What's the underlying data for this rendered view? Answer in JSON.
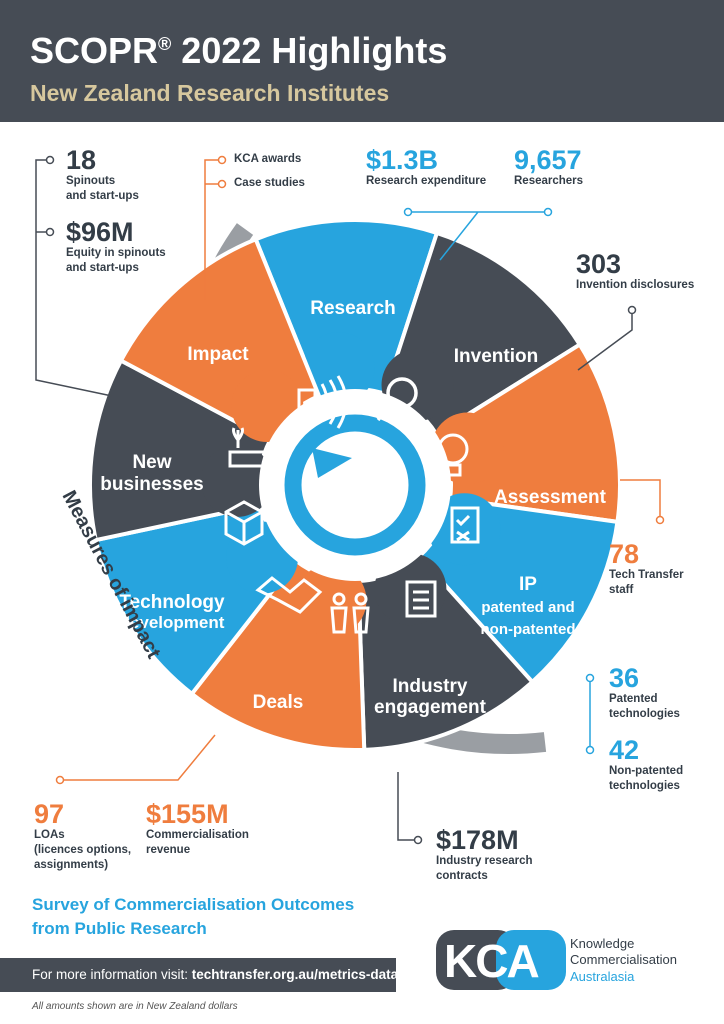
{
  "header": {
    "title": "SCOPR",
    "title_mark": "®",
    "title_rest": " 2022 Highlights",
    "subtitle": "New Zealand Research Institutes"
  },
  "wheel": {
    "segments": [
      {
        "label": "Research",
        "color": "#27a4de",
        "icon": "magnifier-icon"
      },
      {
        "label": "Invention",
        "color": "#464c55",
        "icon": "lightbulb-icon"
      },
      {
        "label": "Assessment",
        "color": "#ef7d3e",
        "icon": "clipboard-icon"
      },
      {
        "label": "IP",
        "sublabel_1": "patented and",
        "sublabel_2": "non-patented",
        "color": "#27a4de",
        "icon": "scroll-icon"
      },
      {
        "label": "Industry",
        "label_2": "engagement",
        "color": "#464c55",
        "icon": "people-icon"
      },
      {
        "label": "Deals",
        "color": "#ef7d3e",
        "icon": "handshake-icon"
      },
      {
        "label": "Technology",
        "label_2": "development",
        "color": "#27a4de",
        "icon": "box-icon"
      },
      {
        "label": "New",
        "label_2": "businesses",
        "color": "#464c55",
        "icon": "factory-icon"
      },
      {
        "label": "Impact",
        "color": "#ef7d3e",
        "icon": "megaphone-icon"
      }
    ],
    "arc_label": "Measures of impact"
  },
  "stats": {
    "spinouts": {
      "value": "18",
      "label_1": "Spinouts",
      "label_2": "and start-ups"
    },
    "equity": {
      "value": "$96M",
      "label_1": "Equity in spinouts",
      "label_2": "and start-ups"
    },
    "kca_awards": "KCA awards",
    "case_studies": "Case studies",
    "research_exp": {
      "value": "$1.3B",
      "label": "Research expenditure"
    },
    "researchers": {
      "value": "9,657",
      "label": "Researchers"
    },
    "invention": {
      "value": "303",
      "label": "Invention disclosures"
    },
    "tt_staff": {
      "value": "78",
      "label_1": "Tech Transfer",
      "label_2": "staff"
    },
    "patented": {
      "value": "36",
      "label_1": "Patented",
      "label_2": "technologies"
    },
    "non_patented": {
      "value": "42",
      "label_1": "Non-patented",
      "label_2": "technologies"
    },
    "loas": {
      "value": "97",
      "label_1": "LOAs",
      "label_2": "(licences options,",
      "label_3": "assignments)"
    },
    "comm_revenue": {
      "value": "$155M",
      "label_1": "Commercialisation",
      "label_2": "revenue"
    },
    "industry_contracts": {
      "value": "$178M",
      "label_1": "Industry research",
      "label_2": "contracts"
    }
  },
  "footer": {
    "survey_1": "Survey of Commercialisation Outcomes",
    "survey_2": "from Public Research",
    "info_prefix": "For more information visit: ",
    "info_link": "techtransfer.org.au/metrics-data",
    "footnote": "All amounts shown are in New Zealand dollars",
    "logo_letters": "KCA",
    "logo_name_1": "Knowledge",
    "logo_name_2": "Commercialisation",
    "logo_name_3": "Australasia"
  },
  "colors": {
    "dark": "#464c55",
    "blue": "#27a4de",
    "orange": "#ef7d3e",
    "gold": "#d7c89e",
    "grey_ring": "#9a9ea3"
  }
}
